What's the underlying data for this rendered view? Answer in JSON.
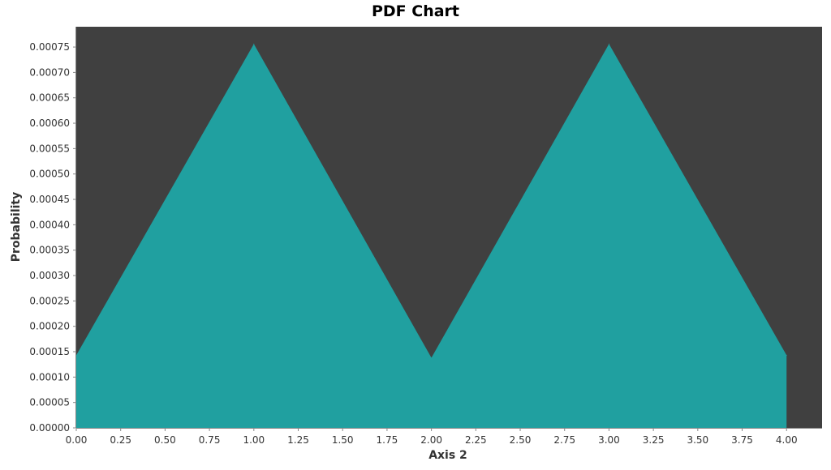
{
  "chart_data": {
    "type": "area",
    "title": "PDF Chart",
    "xlabel": "Axis 2",
    "ylabel": "Probability",
    "xlim": [
      0,
      4.2
    ],
    "ylim": [
      0,
      0.00079
    ],
    "x_ticks": [
      "0.00",
      "0.25",
      "0.50",
      "0.75",
      "1.00",
      "1.25",
      "1.50",
      "1.75",
      "2.00",
      "2.25",
      "2.50",
      "2.75",
      "3.00",
      "3.25",
      "3.50",
      "3.75",
      "4.00"
    ],
    "y_ticks": [
      "0.00000",
      "0.00005",
      "0.00010",
      "0.00015",
      "0.00020",
      "0.00025",
      "0.00030",
      "0.00035",
      "0.00040",
      "0.00045",
      "0.00050",
      "0.00055",
      "0.00060",
      "0.00065",
      "0.00070",
      "0.00075"
    ],
    "grid": false,
    "colors": {
      "plot_background": "#404040",
      "area_fill": "#20a0a0"
    },
    "series": [
      {
        "x": [
          0,
          1,
          2,
          3,
          4
        ],
        "y": [
          0.000143,
          0.000756,
          0.000138,
          0.000756,
          0.000143
        ]
      }
    ]
  }
}
